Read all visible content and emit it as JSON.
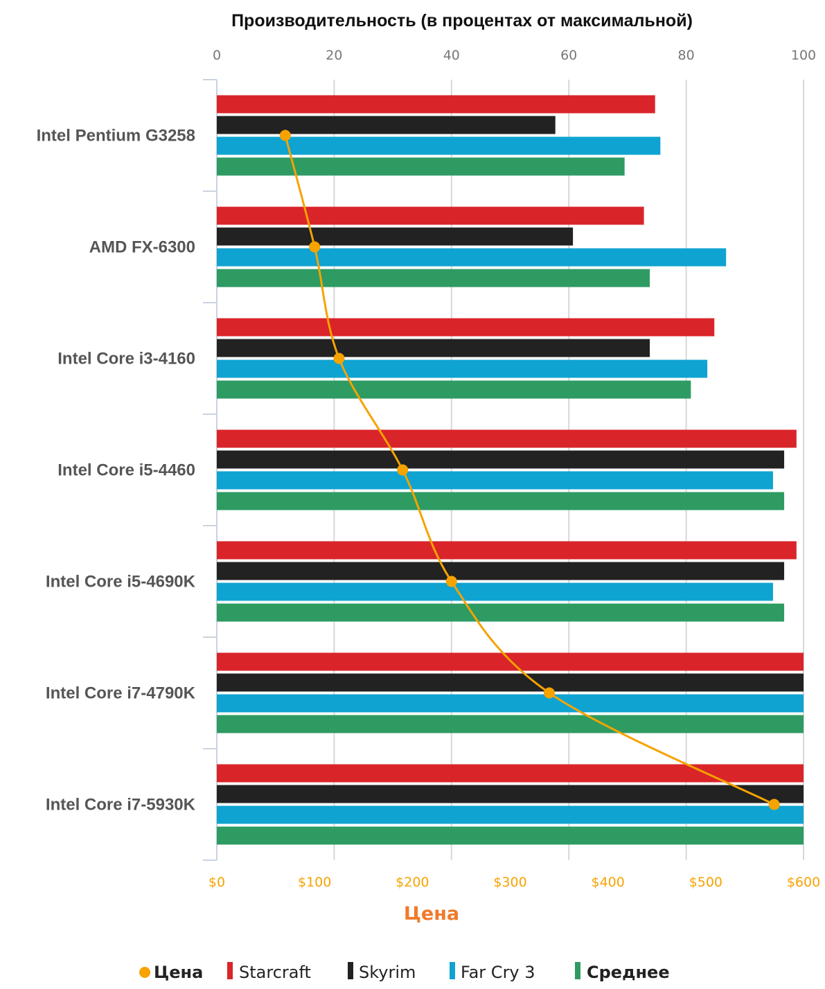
{
  "chart_data": {
    "type": "bar",
    "orientation": "horizontal",
    "title": "Производительность (в процентах от максимальной)",
    "top_axis": {
      "range": [
        0,
        100
      ],
      "ticks": [
        "0",
        "20",
        "40",
        "60",
        "80",
        "100"
      ]
    },
    "bottom_axis": {
      "title": "Цена",
      "range": [
        0,
        600
      ],
      "ticks": [
        "$0",
        "$100",
        "$200",
        "$300",
        "$400",
        "$500",
        "$600"
      ]
    },
    "categories": [
      "Intel Pentium G3258",
      "AMD FX-6300",
      "Intel Core i3-4160",
      "Intel Core i5-4460",
      "Intel Core i5-4690K",
      "Intel Core i7-4790K",
      "Intel Core i7-5930K"
    ],
    "series": [
      {
        "name": "Starcraft",
        "color": "#d9252a",
        "values": [
          74.7,
          72.8,
          84.8,
          98.8,
          98.8,
          100,
          100
        ]
      },
      {
        "name": "Skyrim",
        "color": "#222222",
        "values": [
          57.7,
          60.7,
          73.8,
          96.7,
          96.7,
          100,
          100
        ]
      },
      {
        "name": "Far Cry 3",
        "color": "#0fa3d1",
        "values": [
          75.6,
          86.8,
          83.6,
          94.8,
          94.8,
          100,
          100
        ]
      },
      {
        "name": "Среднее",
        "color": "#2e9b63",
        "values": [
          69.5,
          73.8,
          80.8,
          96.7,
          96.7,
          100,
          100
        ]
      }
    ],
    "price_line": {
      "name": "Цена",
      "color": "#f6a300",
      "values": [
        70,
        100,
        125,
        190,
        240,
        340,
        570
      ]
    },
    "legend": {
      "position": "bottom",
      "items": [
        {
          "label": "Цена",
          "marker": "dot",
          "color": "#f6a300",
          "bold": true
        },
        {
          "label": "Starcraft",
          "marker": "bar",
          "color": "#d9252a",
          "bold": false
        },
        {
          "label": "Skyrim",
          "marker": "bar",
          "color": "#222222",
          "bold": false
        },
        {
          "label": "Far Cry 3",
          "marker": "bar",
          "color": "#0fa3d1",
          "bold": false
        },
        {
          "label": "Среднее",
          "marker": "bar",
          "color": "#2e9b63",
          "bold": true
        }
      ]
    },
    "grid": true
  }
}
